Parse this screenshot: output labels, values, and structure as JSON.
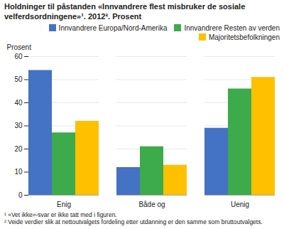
{
  "chart_data": {
    "type": "bar",
    "title": "Holdninger til påstanden «Innvandrere flest misbruker de sosiale\nvelferdsordningene»¹. 2012². Prosent",
    "ylabel": "Prosent",
    "categories": [
      "Enig",
      "Både og",
      "Uenig"
    ],
    "series": [
      {
        "name": "Innvandrere Europa/Nord-Amerika",
        "color": "#4472C4",
        "values": [
          54,
          12,
          29
        ]
      },
      {
        "name": "Innvandrere Resten av verden",
        "color": "#3DAA4B",
        "values": [
          27,
          21,
          46
        ]
      },
      {
        "name": "Majoritetsbefolkningen",
        "color": "#FFC000",
        "values": [
          32,
          13,
          51
        ]
      }
    ],
    "ylim": [
      0,
      60
    ],
    "yticks": [
      0,
      10,
      20,
      30,
      40,
      50,
      60
    ],
    "grid": true,
    "legend": "upper right",
    "annotations": [
      "¹ «Vet ikke»-svar er ikke tatt med i figuren.",
      "² Veide verdier slik at nettoutvalgets fordeling etter utdanning er den samme som bruttoutvalgets."
    ]
  }
}
